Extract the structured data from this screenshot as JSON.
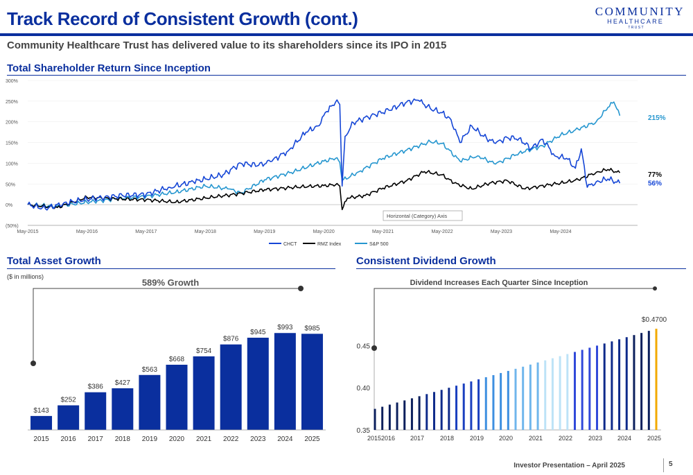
{
  "header": {
    "title": "Track Record of Consistent Growth (cont.)",
    "subtitle": "Community Healthcare Trust has delivered value to its shareholders since its IPO in 2015",
    "logo": {
      "line1": "COMMUNITY",
      "line2": "HEALTHCARE",
      "line3": "TRUST"
    }
  },
  "sections": {
    "tsr_title": "Total Shareholder Return Since Inception",
    "asset_title": "Total Asset Growth",
    "asset_units": "($ in millions)",
    "dividend_title": "Consistent Dividend Growth"
  },
  "colors": {
    "brand": "#0a2f9e",
    "chct": "#1546d6",
    "rmz": "#000000",
    "sp500": "#2596cf",
    "asset_bar": "#0a2f9e",
    "dividend_dark": "#0b1f5c",
    "dividend_light": "#bde3f7",
    "dividend_latest": "#f2a900"
  },
  "chart_data": [
    {
      "type": "line",
      "title": "Total Shareholder Return Since Inception",
      "x_ticks": [
        "May-2015",
        "May-2016",
        "May-2017",
        "May-2018",
        "May-2019",
        "May-2020",
        "May-2021",
        "May-2022",
        "May-2023",
        "May-2024"
      ],
      "y_ticks": [
        "300%",
        "250%",
        "200%",
        "150%",
        "100%",
        "50%",
        "0%",
        "(50%)"
      ],
      "ylim": [
        -50,
        300
      ],
      "x_unit": "years since May 2015",
      "tooltip": "Horizontal (Category) Axis",
      "series": [
        {
          "name": "CHCT",
          "end_label": "56%",
          "points": [
            [
              0,
              0
            ],
            [
              0.3,
              -10
            ],
            [
              0.6,
              3
            ],
            [
              1.0,
              13
            ],
            [
              1.3,
              18
            ],
            [
              1.6,
              22
            ],
            [
              2.0,
              25
            ],
            [
              2.4,
              42
            ],
            [
              2.8,
              55
            ],
            [
              3.0,
              62
            ],
            [
              3.3,
              72
            ],
            [
              3.6,
              100
            ],
            [
              3.9,
              95
            ],
            [
              4.1,
              104
            ],
            [
              4.4,
              130
            ],
            [
              4.7,
              175
            ],
            [
              4.9,
              190
            ],
            [
              5.05,
              225
            ],
            [
              5.15,
              240
            ],
            [
              5.2,
              248
            ],
            [
              5.27,
              242
            ],
            [
              5.31,
              45
            ],
            [
              5.36,
              165
            ],
            [
              5.5,
              198
            ],
            [
              5.8,
              215
            ],
            [
              6.1,
              228
            ],
            [
              6.4,
              248
            ],
            [
              6.6,
              252
            ],
            [
              6.8,
              232
            ],
            [
              7.0,
              222
            ],
            [
              7.15,
              205
            ],
            [
              7.3,
              150
            ],
            [
              7.5,
              190
            ],
            [
              7.7,
              165
            ],
            [
              7.9,
              148
            ],
            [
              8.1,
              162
            ],
            [
              8.3,
              160
            ],
            [
              8.5,
              135
            ],
            [
              8.7,
              158
            ],
            [
              8.9,
              118
            ],
            [
              9.1,
              112
            ],
            [
              9.25,
              88
            ],
            [
              9.35,
              135
            ],
            [
              9.45,
              42
            ],
            [
              9.6,
              55
            ],
            [
              9.8,
              62
            ],
            [
              10.0,
              52
            ]
          ]
        },
        {
          "name": "RMZ Index",
          "end_label": "77%",
          "points": [
            [
              0,
              0
            ],
            [
              0.5,
              -7
            ],
            [
              1.0,
              18
            ],
            [
              1.5,
              14
            ],
            [
              2.0,
              12
            ],
            [
              2.5,
              6
            ],
            [
              3.0,
              16
            ],
            [
              3.5,
              25
            ],
            [
              4.0,
              36
            ],
            [
              4.5,
              42
            ],
            [
              5.0,
              46
            ],
            [
              5.2,
              48
            ],
            [
              5.27,
              45
            ],
            [
              5.31,
              -12
            ],
            [
              5.4,
              16
            ],
            [
              5.7,
              22
            ],
            [
              6.0,
              40
            ],
            [
              6.4,
              58
            ],
            [
              6.7,
              80
            ],
            [
              7.0,
              72
            ],
            [
              7.2,
              52
            ],
            [
              7.5,
              38
            ],
            [
              7.8,
              52
            ],
            [
              8.1,
              58
            ],
            [
              8.4,
              38
            ],
            [
              8.8,
              48
            ],
            [
              9.0,
              52
            ],
            [
              9.3,
              60
            ],
            [
              9.6,
              78
            ],
            [
              9.8,
              85
            ],
            [
              10.0,
              77
            ]
          ]
        },
        {
          "name": "S&P 500",
          "end_label": "215%",
          "points": [
            [
              0,
              0
            ],
            [
              0.5,
              -4
            ],
            [
              1.0,
              6
            ],
            [
              1.5,
              14
            ],
            [
              2.0,
              20
            ],
            [
              2.5,
              30
            ],
            [
              3.0,
              45
            ],
            [
              3.4,
              38
            ],
            [
              3.6,
              28
            ],
            [
              4.0,
              60
            ],
            [
              4.5,
              80
            ],
            [
              5.0,
              105
            ],
            [
              5.2,
              112
            ],
            [
              5.27,
              102
            ],
            [
              5.31,
              58
            ],
            [
              5.6,
              80
            ],
            [
              6.0,
              112
            ],
            [
              6.4,
              132
            ],
            [
              6.8,
              152
            ],
            [
              7.0,
              148
            ],
            [
              7.3,
              105
            ],
            [
              7.6,
              118
            ],
            [
              7.9,
              98
            ],
            [
              8.3,
              125
            ],
            [
              8.7,
              142
            ],
            [
              9.0,
              168
            ],
            [
              9.3,
              182
            ],
            [
              9.6,
              200
            ],
            [
              9.8,
              235
            ],
            [
              9.9,
              248
            ],
            [
              10.0,
              215
            ]
          ]
        }
      ]
    },
    {
      "type": "bar",
      "title": "Total Asset Growth",
      "annotation": "589% Growth",
      "categories": [
        "2015",
        "2016",
        "2017",
        "2018",
        "2019",
        "2020",
        "2021",
        "2022",
        "2023",
        "2024",
        "2025"
      ],
      "values": [
        143,
        252,
        386,
        427,
        563,
        668,
        754,
        876,
        945,
        993,
        985
      ],
      "labels": [
        "$143",
        "$252",
        "$386",
        "$427",
        "$563",
        "$668",
        "$754",
        "$876",
        "$945",
        "$993",
        "$985"
      ],
      "ylim": [
        0,
        1080
      ]
    },
    {
      "type": "bar",
      "title": "Consistent Dividend Growth",
      "annotation": "Dividend Increases Each Quarter Since Inception",
      "latest_label": "$0.4700",
      "x_ticks": [
        "2015",
        "2016",
        "2017",
        "2018",
        "2019",
        "2020",
        "2021",
        "2022",
        "2023",
        "2024",
        "2025"
      ],
      "y_ticks": [
        "0.45",
        "0.40",
        "0.35"
      ],
      "ylim": [
        0.35,
        0.475
      ],
      "values": [
        0.375,
        0.3775,
        0.38,
        0.3825,
        0.385,
        0.3875,
        0.39,
        0.3925,
        0.395,
        0.3975,
        0.4,
        0.4025,
        0.405,
        0.4075,
        0.41,
        0.4125,
        0.415,
        0.4175,
        0.42,
        0.4225,
        0.425,
        0.4275,
        0.43,
        0.4325,
        0.435,
        0.4375,
        0.44,
        0.4425,
        0.445,
        0.4475,
        0.45,
        0.4525,
        0.455,
        0.4575,
        0.46,
        0.4625,
        0.465,
        0.4675,
        0.47
      ]
    }
  ],
  "legend": [
    "CHCT",
    "RMZ Index",
    "S&P 500"
  ],
  "footer": {
    "text": "Investor Presentation – April 2025",
    "page": "5"
  }
}
